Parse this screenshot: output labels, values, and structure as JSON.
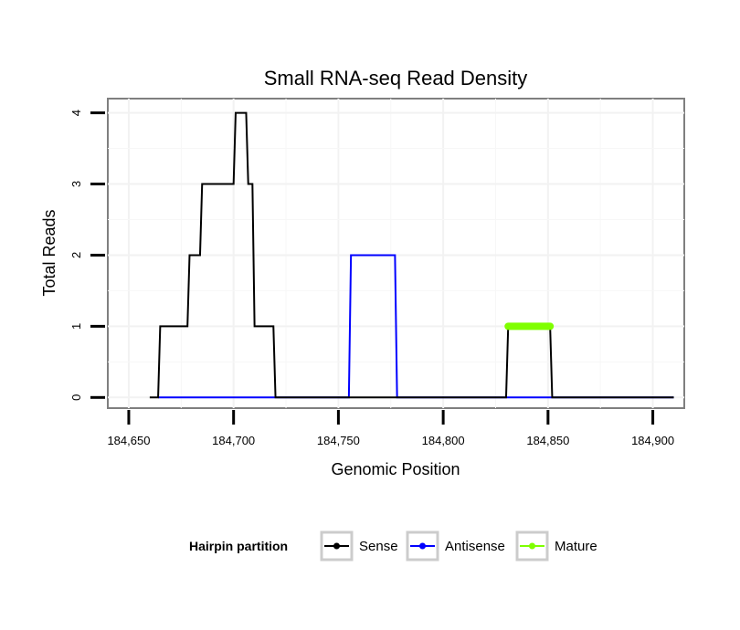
{
  "chart_data": {
    "type": "line",
    "title": "Small RNA-seq Read Density",
    "xlabel": "Genomic Position",
    "ylabel": "Total Reads",
    "xlim": [
      184640,
      184915
    ],
    "ylim": [
      -0.15,
      4.2
    ],
    "x_ticks": [
      184650,
      184700,
      184750,
      184800,
      184850,
      184900
    ],
    "x_tick_labels": [
      "184,650",
      "184,700",
      "184,750",
      "184,800",
      "184,850",
      "184,900"
    ],
    "y_ticks": [
      0,
      1,
      2,
      3,
      4
    ],
    "y_tick_labels": [
      "0",
      "1",
      "2",
      "3",
      "4"
    ],
    "grid": true,
    "legend": {
      "title": "Hairpin partition",
      "position": "bottom",
      "entries": [
        "Sense",
        "Antisense",
        "Mature"
      ]
    },
    "series": [
      {
        "name": "Sense",
        "color": "#000000",
        "x": [
          184660,
          184664,
          184665,
          184678,
          184679,
          184684,
          184685,
          184700,
          184701,
          184706,
          184707,
          184709,
          184710,
          184719,
          184720,
          184830,
          184831,
          184851,
          184852,
          184910
        ],
        "y": [
          0,
          0,
          1,
          1,
          2,
          2,
          3,
          3,
          4,
          4,
          3,
          3,
          1,
          1,
          0,
          0,
          1,
          1,
          0,
          0
        ]
      },
      {
        "name": "Antisense",
        "color": "#0000ff",
        "x": [
          184664,
          184755,
          184756,
          184777,
          184778,
          184910
        ],
        "y": [
          0,
          0,
          2,
          2,
          0,
          0
        ]
      },
      {
        "name": "Mature",
        "color": "#7fff00",
        "x": [
          184831,
          184851
        ],
        "y": [
          1,
          1
        ]
      }
    ]
  }
}
